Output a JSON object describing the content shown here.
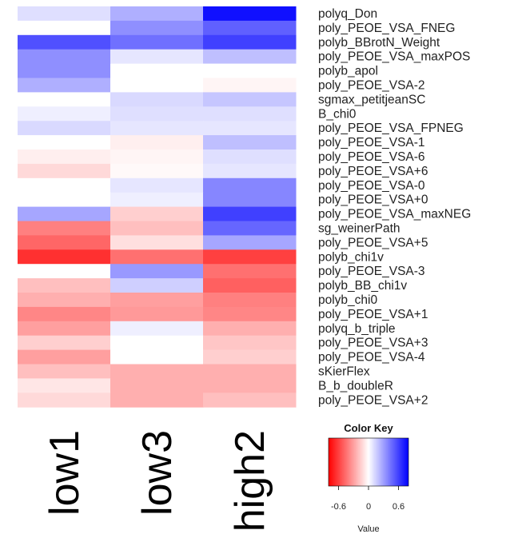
{
  "chart_data": {
    "type": "heatmap",
    "columns": [
      "low1",
      "low3",
      "high2"
    ],
    "rows": [
      "polyq_Don",
      "poly_PEOE_VSA_FNEG",
      "polyb_BBrotN_Weight",
      "poly_PEOE_VSA_maxPOS",
      "polyb_apol",
      "poly_PEOE_VSA-2",
      "sgmax_petitjeanSC",
      "B_chi0",
      "poly_PEOE_VSA_FPNEG",
      "poly_PEOE_VSA-1",
      "poly_PEOE_VSA-6",
      "poly_PEOE_VSA+6",
      "poly_PEOE_VSA-0",
      "poly_PEOE_VSA+0",
      "poly_PEOE_VSA_maxNEG",
      "sg_weinerPath",
      "poly_PEOE_VSA+5",
      "polyb_chi1v",
      "poly_PEOE_VSA-3",
      "polyb_BB_chi1v",
      "polyb_chi0",
      "poly_PEOE_VSA+1",
      "polyq_b_triple",
      "poly_PEOE_VSA+3",
      "poly_PEOE_VSA-4",
      "sKierFlex",
      "B_b_doubleR",
      "poly_PEOE_VSA+2"
    ],
    "row_values": [
      [
        0.1,
        0.25,
        0.75
      ],
      [
        0.0,
        0.35,
        0.5
      ],
      [
        0.55,
        0.45,
        0.6
      ],
      [
        0.35,
        0.08,
        0.2
      ],
      [
        0.35,
        0.0,
        0.0
      ],
      [
        0.25,
        0.0,
        -0.03
      ],
      [
        0.0,
        0.12,
        0.18
      ],
      [
        0.05,
        0.1,
        0.1
      ],
      [
        0.12,
        0.08,
        0.08
      ],
      [
        0.0,
        -0.05,
        0.2
      ],
      [
        -0.05,
        -0.03,
        0.1
      ],
      [
        -0.12,
        -0.02,
        0.08
      ],
      [
        0.0,
        0.08,
        0.38
      ],
      [
        0.0,
        0.05,
        0.38
      ],
      [
        0.28,
        -0.15,
        0.6
      ],
      [
        -0.4,
        -0.2,
        0.48
      ],
      [
        -0.48,
        -0.1,
        0.28
      ],
      [
        -0.65,
        -0.45,
        -0.6
      ],
      [
        0.0,
        0.32,
        -0.45
      ],
      [
        -0.2,
        0.15,
        -0.5
      ],
      [
        -0.25,
        -0.3,
        -0.4
      ],
      [
        -0.38,
        -0.32,
        -0.38
      ],
      [
        -0.3,
        0.05,
        -0.25
      ],
      [
        -0.15,
        0.0,
        -0.18
      ],
      [
        -0.3,
        0.0,
        -0.15
      ],
      [
        -0.2,
        -0.25,
        -0.25
      ],
      [
        -0.08,
        -0.25,
        -0.25
      ],
      [
        -0.12,
        -0.25,
        -0.2
      ]
    ],
    "color_key": {
      "title": "Color Key",
      "xlabel": "Value",
      "ticks": [
        -0.6,
        0,
        0.6
      ],
      "tick_labels": [
        "-0.6",
        "0",
        "0.6"
      ],
      "range": [
        -0.8,
        0.8
      ],
      "low_color": "#ff0000",
      "mid_color": "#ffffff",
      "high_color": "#0000ff"
    }
  }
}
